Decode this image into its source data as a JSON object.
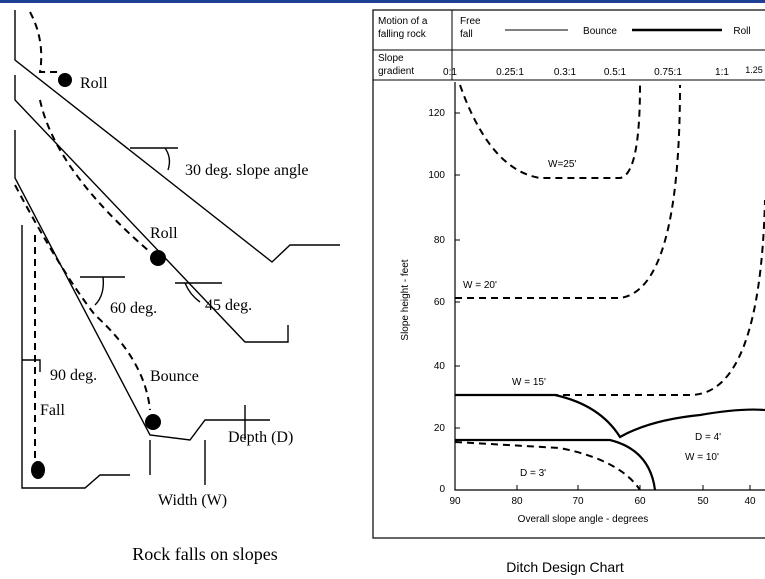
{
  "left_figure": {
    "labels": [
      "Roll",
      "30 deg. slope angle",
      "Roll",
      "60 deg.",
      "45 deg.",
      "90 deg.",
      "Bounce",
      "Fall",
      "Depth (D)",
      "Width (W)"
    ],
    "caption": "Rock falls on slopes"
  },
  "right_figure": {
    "header": {
      "motion_label": [
        "Motion of a",
        "falling rock"
      ],
      "free_fall": [
        "Free",
        "fall"
      ],
      "bounce": "Bounce",
      "roll": "Roll",
      "slope_label": [
        "Slope",
        "gradient"
      ],
      "gradients": [
        "0:1",
        "0.25:1",
        "0.3:1",
        "0.5:1",
        "0.75:1",
        "1:1",
        "1.25"
      ]
    },
    "y_axis_label": "Slope height - feet",
    "yticks": [
      "0",
      "20",
      "40",
      "60",
      "80",
      "100",
      "120"
    ],
    "x_axis_label": "Overall slope angle - degrees",
    "xticks": [
      "90",
      "80",
      "70",
      "60",
      "50",
      "40"
    ],
    "curve_labels": [
      "W=25'",
      "W = 20'",
      "W = 15'",
      "D = 4'",
      "W = 10'",
      "D = 3'"
    ],
    "caption": "Ditch Design Chart"
  }
}
